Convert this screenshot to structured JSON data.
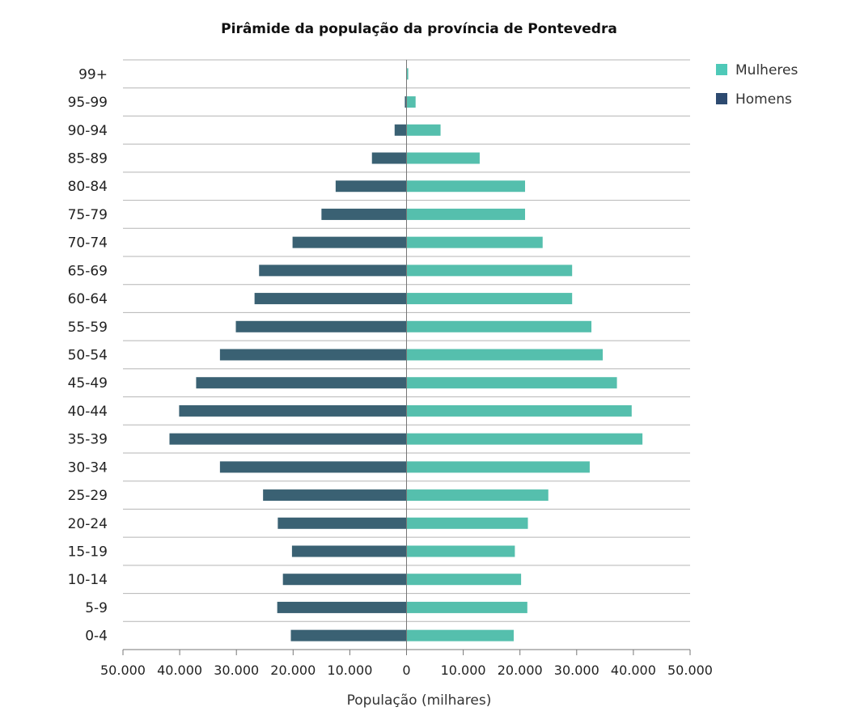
{
  "chart_data": {
    "type": "bar",
    "orientation": "horizontal",
    "title": "Pirâmide da população da província de  Pontevedra",
    "xlabel": "População (milhares)",
    "ylabel": "",
    "xlim": [
      -50000,
      50000
    ],
    "x_ticks": [
      -50000,
      -40000,
      -30000,
      -20000,
      -10000,
      0,
      10000,
      20000,
      30000,
      40000,
      50000
    ],
    "x_tick_labels": [
      "50.000",
      "40.000",
      "30.000",
      "20.000",
      "10.000",
      "0",
      "10.000",
      "20.000",
      "30.000",
      "40.000",
      "50.000"
    ],
    "categories": [
      "99+",
      "95-99",
      "90-94",
      "85-89",
      "80-84",
      "75-79",
      "70-74",
      "65-69",
      "60-64",
      "55-59",
      "50-54",
      "45-49",
      "40-44",
      "35-39",
      "30-34",
      "25-29",
      "20-24",
      "15-19",
      "10-14",
      "5-9",
      "0-4"
    ],
    "series": [
      {
        "name": "Mulheres",
        "color": "#55bfad",
        "values": [
          300,
          1600,
          6000,
          12900,
          20900,
          20900,
          24000,
          29200,
          29200,
          32600,
          34600,
          37100,
          39700,
          41600,
          32300,
          25000,
          21400,
          19100,
          20200,
          21300,
          18900
        ]
      },
      {
        "name": "Homens",
        "color": "#3a6173",
        "values": [
          0,
          300,
          2100,
          6100,
          12500,
          15000,
          20100,
          26000,
          26800,
          30100,
          32900,
          37100,
          40100,
          41800,
          32900,
          25300,
          22700,
          20200,
          21800,
          22800,
          20400
        ]
      }
    ],
    "legend": {
      "position": "top-right",
      "items": [
        {
          "label": "Mulheres",
          "color": "#4ec9b8"
        },
        {
          "label": "Homens",
          "color": "#2d4a70"
        }
      ]
    },
    "grid": {
      "horizontal": true,
      "vertical": false
    }
  }
}
